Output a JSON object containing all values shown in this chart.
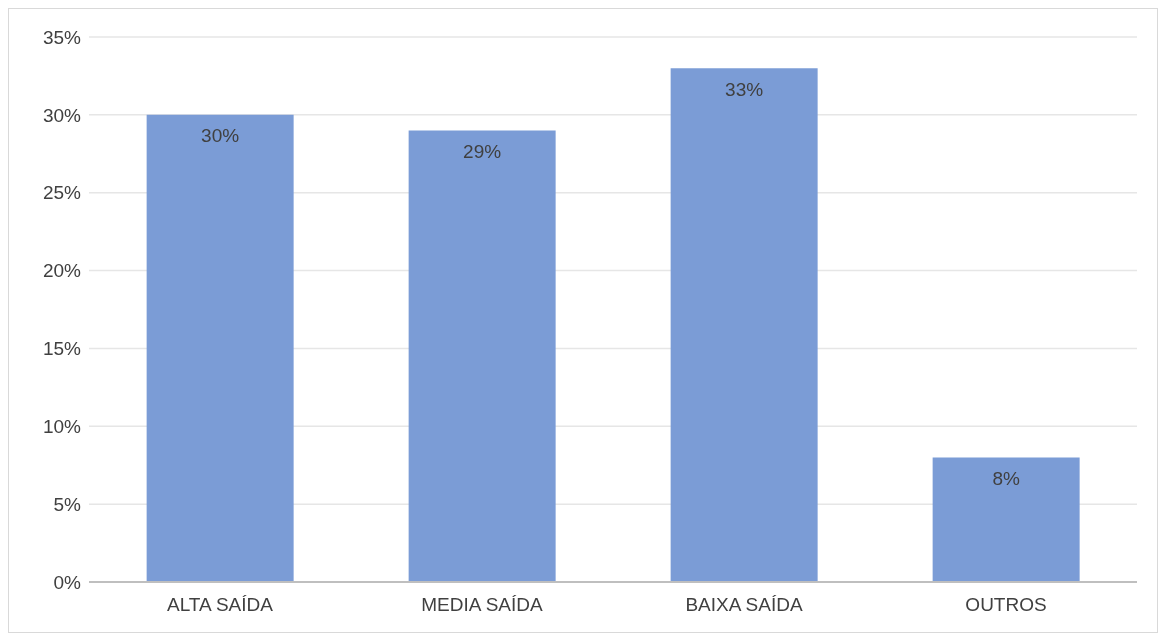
{
  "chart_data": {
    "type": "bar",
    "categories": [
      "ALTA SAÍDA",
      "MEDIA SAÍDA",
      "BAIXA SAÍDA",
      "OUTROS"
    ],
    "values": [
      30,
      29,
      33,
      8
    ],
    "value_labels": [
      "30%",
      "29%",
      "33%",
      "8%"
    ],
    "color": "#7b9cd6",
    "ylim": [
      0,
      35
    ],
    "yticks": [
      {
        "value": 0,
        "label": "0%"
      },
      {
        "value": 5,
        "label": "5%"
      },
      {
        "value": 10,
        "label": "10%"
      },
      {
        "value": 15,
        "label": "15%"
      },
      {
        "value": 20,
        "label": "20%"
      },
      {
        "value": 25,
        "label": "25%"
      },
      {
        "value": 30,
        "label": "30%"
      },
      {
        "value": 35,
        "label": "35%"
      }
    ],
    "grid": "y"
  }
}
